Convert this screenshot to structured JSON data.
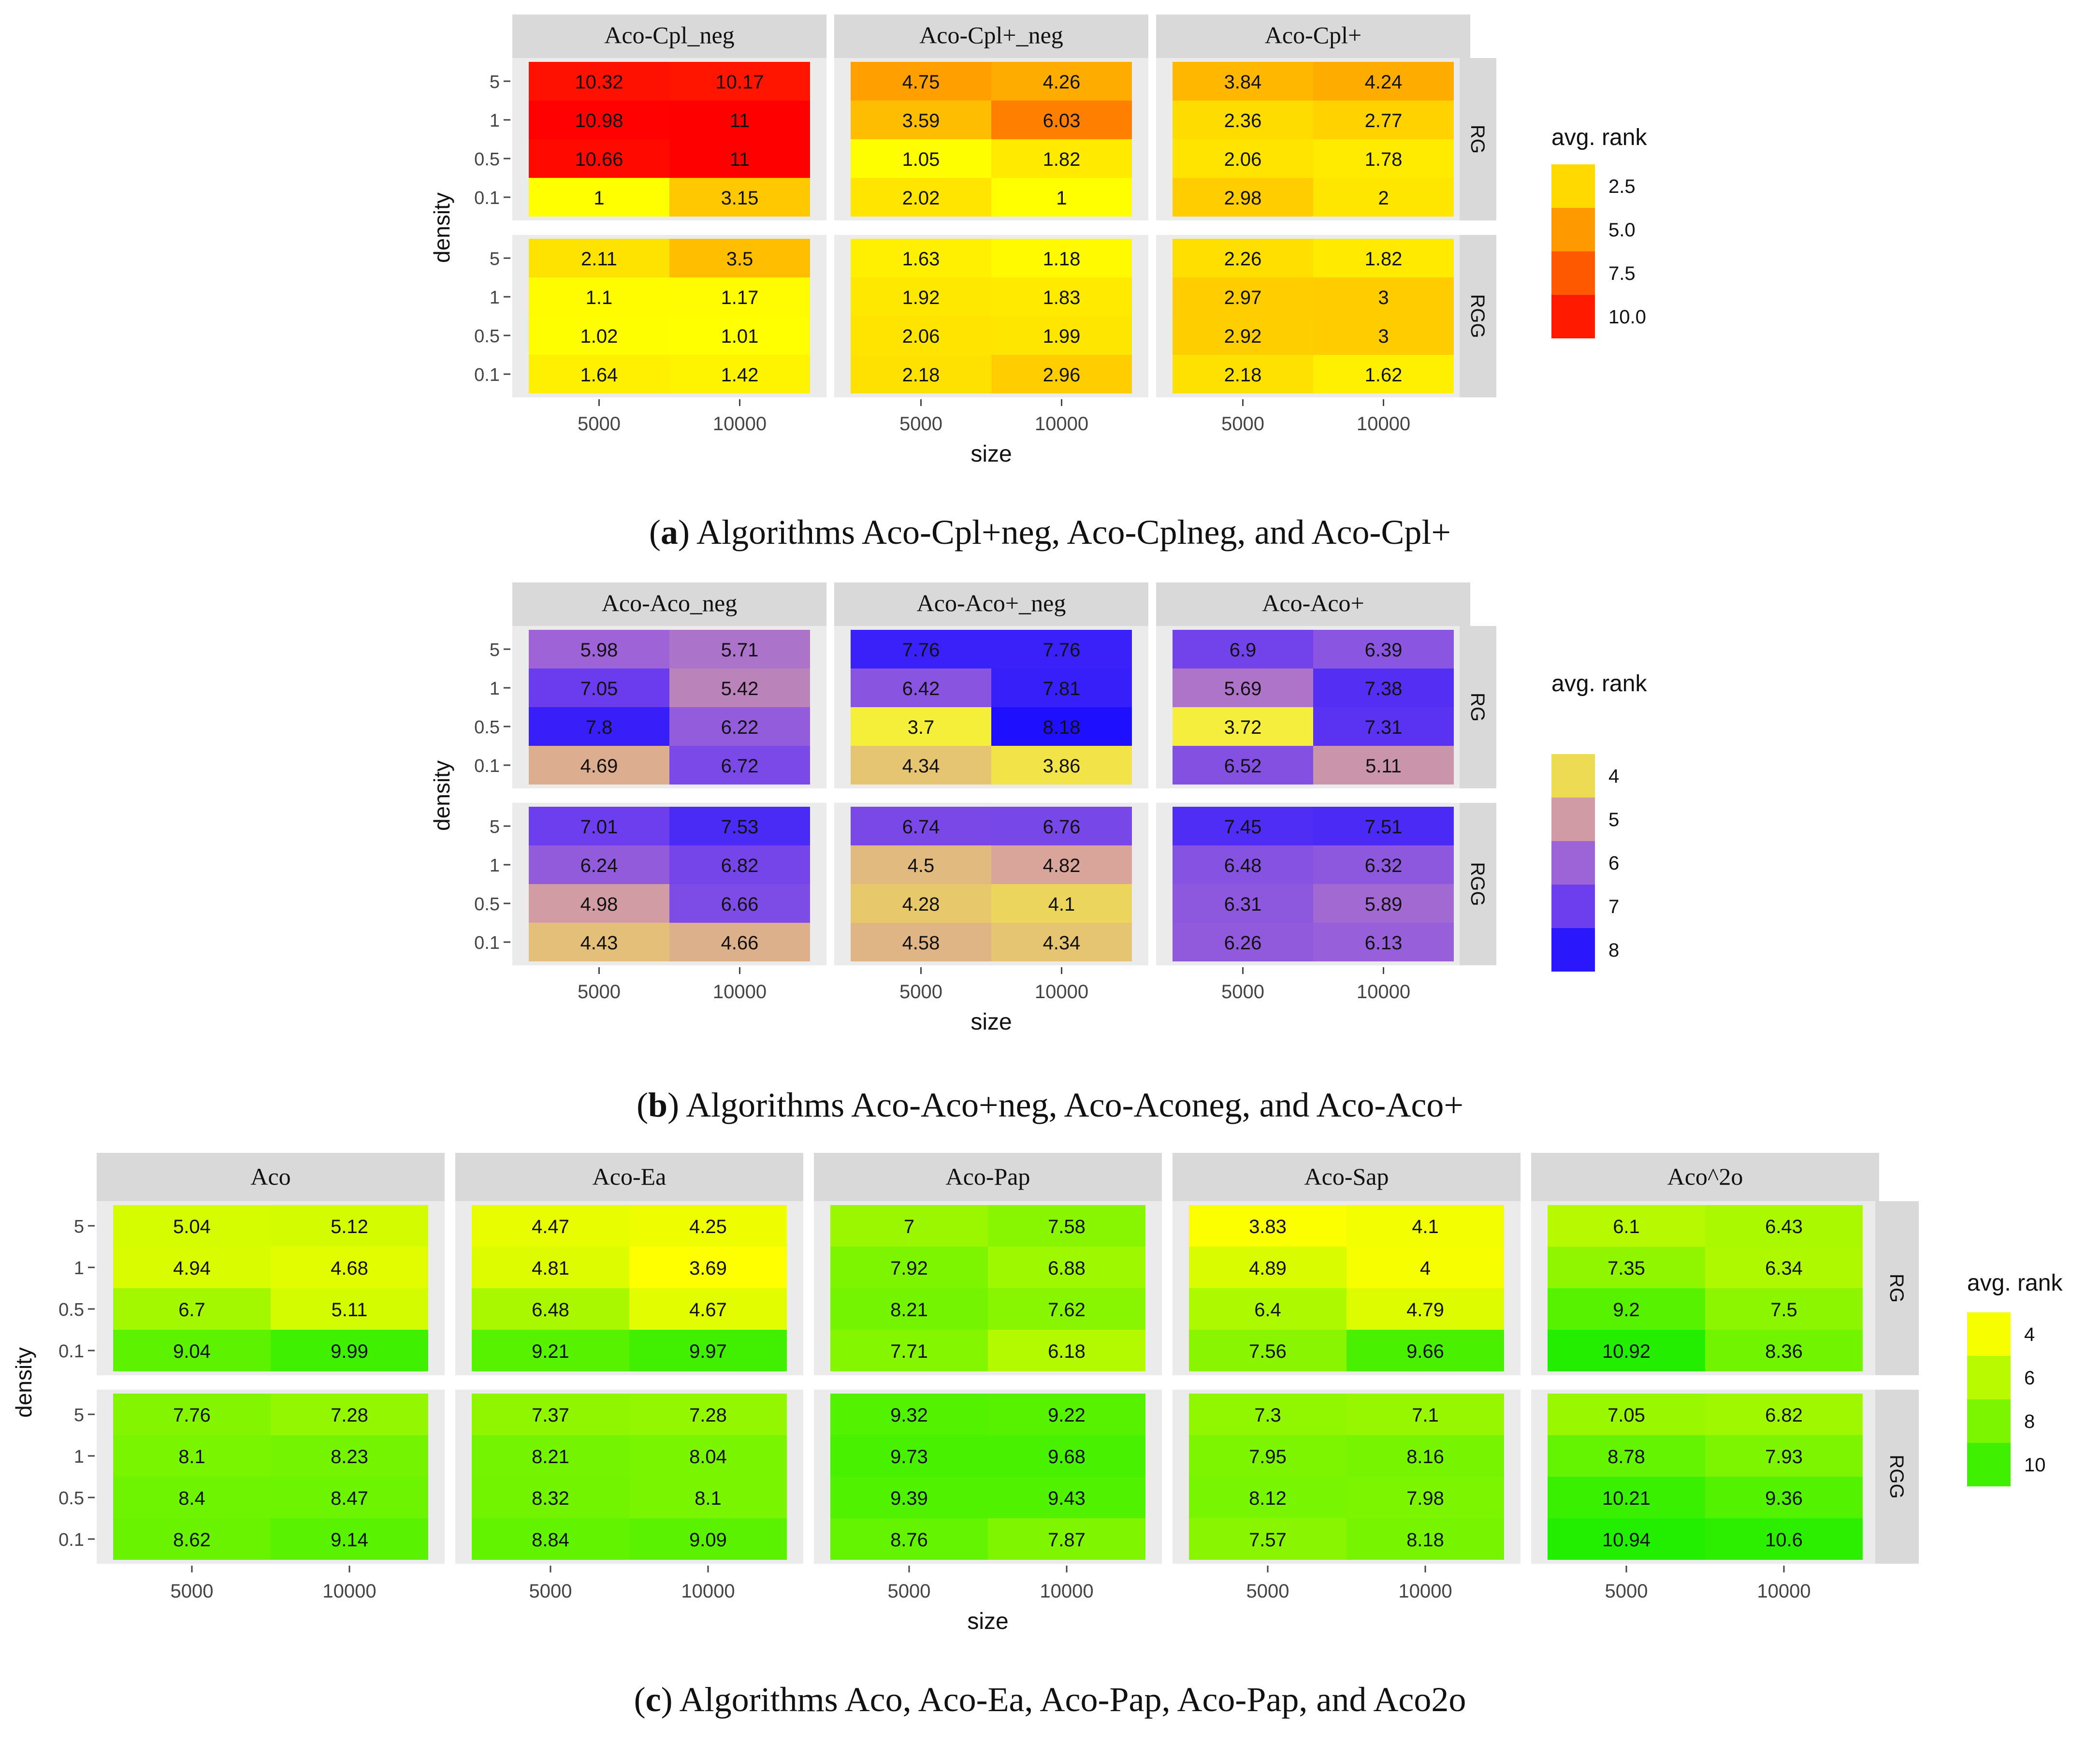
{
  "chart_data": [
    {
      "id": "a",
      "type": "heatmap",
      "facet_columns": [
        "Aco-Cpl_neg",
        "Aco-Cpl+_neg",
        "Aco-Cpl+"
      ],
      "facet_rows": [
        "RG",
        "RGG"
      ],
      "categories": [
        "5000",
        "10000"
      ],
      "densities": [
        "5",
        "1",
        "0.5",
        "0.1"
      ],
      "xlabel": "size",
      "ylabel": "density",
      "legend": {
        "title": "avg. rank",
        "breaks": [
          "2.5",
          "5.0",
          "7.5",
          "10.0"
        ],
        "position": "right"
      },
      "color_scale": {
        "low": "#ffff00",
        "high": "#ff0000",
        "min": 1,
        "max": 11
      },
      "values": [
        [
          [
            [
              10.32,
              10.17
            ],
            [
              10.98,
              11
            ],
            [
              10.66,
              11
            ],
            [
              1,
              3.15
            ]
          ],
          [
            [
              2.11,
              3.5
            ],
            [
              1.1,
              1.17
            ],
            [
              1.02,
              1.01
            ],
            [
              1.64,
              1.42
            ]
          ]
        ],
        [
          [
            [
              4.75,
              4.26
            ],
            [
              3.59,
              6.03
            ],
            [
              1.05,
              1.82
            ],
            [
              2.02,
              1
            ]
          ],
          [
            [
              1.63,
              1.18
            ],
            [
              1.92,
              1.83
            ],
            [
              2.06,
              1.99
            ],
            [
              2.18,
              2.96
            ]
          ]
        ],
        [
          [
            [
              3.84,
              4.24
            ],
            [
              2.36,
              2.77
            ],
            [
              2.06,
              1.78
            ],
            [
              2.98,
              2
            ]
          ],
          [
            [
              2.26,
              1.82
            ],
            [
              2.97,
              3
            ],
            [
              2.92,
              3
            ],
            [
              2.18,
              1.62
            ]
          ]
        ]
      ]
    },
    {
      "id": "b",
      "type": "heatmap",
      "facet_columns": [
        "Aco-Aco_neg",
        "Aco-Aco+_neg",
        "Aco-Aco+"
      ],
      "facet_rows": [
        "RG",
        "RGG"
      ],
      "categories": [
        "5000",
        "10000"
      ],
      "densities": [
        "5",
        "1",
        "0.5",
        "0.1"
      ],
      "xlabel": "size",
      "ylabel": "density",
      "legend": {
        "title": "avg. rank",
        "breaks": [
          "4",
          "5",
          "6",
          "7",
          "8"
        ],
        "position": "right"
      },
      "color_scale": {
        "stops": [
          "#f6ef3a",
          "#d9a59a",
          "#a066d6",
          "#6a3cee",
          "#1e10ff"
        ],
        "min": 3.7,
        "max": 8.18
      },
      "values": [
        [
          [
            [
              5.98,
              5.71
            ],
            [
              7.05,
              5.42
            ],
            [
              7.8,
              6.22
            ],
            [
              4.69,
              6.72
            ]
          ],
          [
            [
              7.01,
              7.53
            ],
            [
              6.24,
              6.82
            ],
            [
              4.98,
              6.66
            ],
            [
              4.43,
              4.66
            ]
          ]
        ],
        [
          [
            [
              7.76,
              7.76
            ],
            [
              6.42,
              7.81
            ],
            [
              3.7,
              8.18
            ],
            [
              4.34,
              3.86
            ]
          ],
          [
            [
              6.74,
              6.76
            ],
            [
              4.5,
              4.82
            ],
            [
              4.28,
              4.1
            ],
            [
              4.58,
              4.34
            ]
          ]
        ],
        [
          [
            [
              6.9,
              6.39
            ],
            [
              5.69,
              7.38
            ],
            [
              3.72,
              7.31
            ],
            [
              6.52,
              5.11
            ]
          ],
          [
            [
              7.45,
              7.51
            ],
            [
              6.48,
              6.32
            ],
            [
              6.31,
              5.89
            ],
            [
              6.26,
              6.13
            ]
          ]
        ]
      ]
    },
    {
      "id": "c",
      "type": "heatmap",
      "facet_columns": [
        "Aco",
        "Aco-Ea",
        "Aco-Pap",
        "Aco-Sap",
        "Aco^2o"
      ],
      "facet_rows": [
        "RG",
        "RGG"
      ],
      "categories": [
        "5000",
        "10000"
      ],
      "densities": [
        "5",
        "1",
        "0.5",
        "0.1"
      ],
      "xlabel": "size",
      "ylabel": "density",
      "legend": {
        "title": "avg. rank",
        "breaks": [
          "4",
          "6",
          "8",
          "10"
        ],
        "position": "right"
      },
      "color_scale": {
        "low": "#ffff00",
        "high": "#22ee00",
        "min": 3.69,
        "max": 10.94
      },
      "values": [
        [
          [
            [
              5.04,
              5.12
            ],
            [
              4.94,
              4.68
            ],
            [
              6.7,
              5.11
            ],
            [
              9.04,
              9.99
            ]
          ],
          [
            [
              7.76,
              7.28
            ],
            [
              8.1,
              8.23
            ],
            [
              8.4,
              8.47
            ],
            [
              8.62,
              9.14
            ]
          ]
        ],
        [
          [
            [
              4.47,
              4.25
            ],
            [
              4.81,
              3.69
            ],
            [
              6.48,
              4.67
            ],
            [
              9.21,
              9.97
            ]
          ],
          [
            [
              7.37,
              7.28
            ],
            [
              8.21,
              8.04
            ],
            [
              8.32,
              8.1
            ],
            [
              8.84,
              9.09
            ]
          ]
        ],
        [
          [
            [
              7,
              7.58
            ],
            [
              7.92,
              6.88
            ],
            [
              8.21,
              7.62
            ],
            [
              7.71,
              6.18
            ]
          ],
          [
            [
              9.32,
              9.22
            ],
            [
              9.73,
              9.68
            ],
            [
              9.39,
              9.43
            ],
            [
              8.76,
              7.87
            ]
          ]
        ],
        [
          [
            [
              3.83,
              4.1
            ],
            [
              4.89,
              4
            ],
            [
              6.4,
              4.79
            ],
            [
              7.56,
              9.66
            ]
          ],
          [
            [
              7.3,
              7.1
            ],
            [
              7.95,
              8.16
            ],
            [
              8.12,
              7.98
            ],
            [
              7.57,
              8.18
            ]
          ]
        ],
        [
          [
            [
              6.1,
              6.43
            ],
            [
              7.35,
              6.34
            ],
            [
              9.2,
              7.5
            ],
            [
              10.92,
              8.36
            ]
          ],
          [
            [
              7.05,
              6.82
            ],
            [
              8.78,
              7.93
            ],
            [
              10.21,
              9.36
            ],
            [
              10.94,
              10.6
            ]
          ]
        ]
      ]
    }
  ],
  "captions": {
    "a": {
      "label": "a",
      "text": "Algorithms Aco-Cpl+neg, Aco-Cplneg, and Aco-Cpl+"
    },
    "b": {
      "label": "b",
      "text": "Algorithms Aco-Aco+neg, Aco-Aconeg, and Aco-Aco+"
    },
    "c": {
      "label": "c",
      "text": "Algorithms Aco, Aco-Ea, Aco-Pap, Aco-Pap, and Aco2o"
    }
  }
}
